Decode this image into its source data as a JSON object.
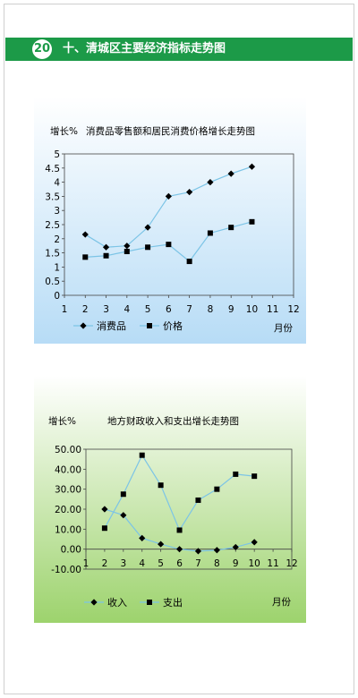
{
  "header": {
    "number": "20",
    "title": "十、清城区主要经济指标走势图"
  },
  "chart_data": [
    {
      "type": "line",
      "title": "消费品零售额和居民消费价格增长走势图",
      "ylabel": "增长%",
      "xlabel": "月份",
      "x": [
        2,
        3,
        4,
        5,
        6,
        7,
        8,
        9,
        10
      ],
      "xlim": [
        1,
        12
      ],
      "ylim": [
        0,
        5
      ],
      "yticks": [
        "0",
        "0.5",
        "1",
        "1.5",
        "2",
        "2.5",
        "3",
        "3.5",
        "4",
        "4.5",
        "5"
      ],
      "xticks": [
        "1",
        "2",
        "3",
        "4",
        "5",
        "6",
        "7",
        "8",
        "9",
        "10",
        "11",
        "12"
      ],
      "legend": "bottom",
      "series": [
        {
          "name": "消费品",
          "marker": "diamond",
          "values": [
            2.15,
            1.7,
            1.75,
            2.4,
            3.5,
            3.65,
            4.0,
            4.3,
            4.55
          ]
        },
        {
          "name": "价格",
          "marker": "square",
          "values": [
            1.35,
            1.4,
            1.55,
            1.7,
            1.8,
            1.2,
            2.2,
            2.4,
            2.6
          ]
        }
      ],
      "colors": {
        "line": "#7cc4e6",
        "marker": "#000000",
        "grid": "#444444"
      }
    },
    {
      "type": "line",
      "title": "地方财政收入和支出增长走势图",
      "ylabel": "增长%",
      "xlabel": "月份",
      "x": [
        2,
        3,
        4,
        5,
        6,
        7,
        8,
        9,
        10
      ],
      "xlim": [
        1,
        12
      ],
      "ylim": [
        -10,
        50
      ],
      "yticks": [
        "-10.00",
        "0.00",
        "10.00",
        "20.00",
        "30.00",
        "40.00",
        "50.00"
      ],
      "xticks": [
        "1",
        "2",
        "3",
        "4",
        "5",
        "6",
        "7",
        "8",
        "9",
        "10",
        "11",
        "12"
      ],
      "legend": "bottom",
      "series": [
        {
          "name": "收入",
          "marker": "diamond",
          "values": [
            20,
            17,
            5.5,
            2.5,
            0,
            -1,
            -0.5,
            1,
            3.5
          ]
        },
        {
          "name": "支出",
          "marker": "square",
          "values": [
            10.5,
            27.5,
            47,
            32,
            9.5,
            24.5,
            30,
            37.5,
            36.5
          ]
        }
      ],
      "colors": {
        "line": "#7cc4e6",
        "marker": "#000000",
        "grid": "#444444"
      }
    }
  ]
}
